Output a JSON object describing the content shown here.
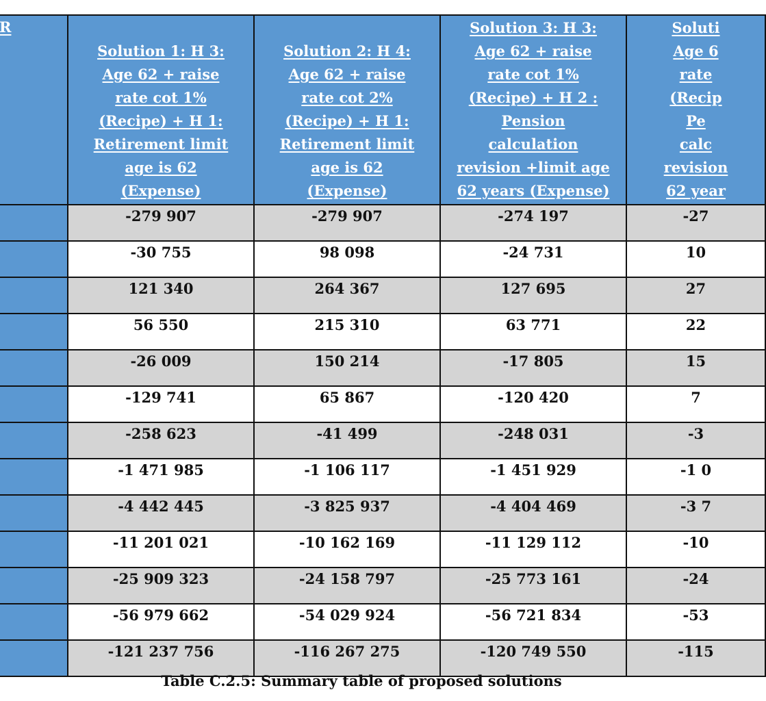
{
  "table": {
    "corner_label": "R",
    "headers": [
      "Solution 1: H 3: Age 62 + raise rate cot 1% (Recipe) + H 1: Retirement limit age is 62 (Expense)",
      "Solution 2: H 4: Age 62 + raise rate cot 2% (Recipe) + H 1: Retirement limit age is 62 (Expense)",
      "Solution 3: H 3: Age 62 + raise rate cot 1% (Recipe) + H 2 : Pension calculation revision +limit age 62 years (Expense)",
      "Soluti Age 6 rate (Recip Pe calc revision 62 year"
    ],
    "header_lines": [
      [
        "Solution 1: H 3:",
        "Age 62 + raise",
        "rate cot 1%",
        "(Recipe) + H 1:",
        "Retirement limit",
        "age is 62",
        "(Expense)"
      ],
      [
        "Solution 2: H 4:",
        "Age 62 + raise",
        "rate cot 2%",
        "(Recipe) + H 1:",
        "Retirement limit",
        "age is 62",
        "(Expense)"
      ],
      [
        "Solution 3: H 3:",
        "Age 62 + raise",
        "rate cot 1%",
        "(Recipe) + H 2 :",
        "Pension",
        "calculation",
        "revision +limit age",
        "62 years (Expense)"
      ],
      [
        "Soluti",
        "Age 6",
        "rate",
        "(Recip",
        "Pe",
        "calc",
        "revision",
        "62 year"
      ]
    ],
    "rows": [
      [
        "-279 907",
        "-279 907",
        "-274 197",
        "-27"
      ],
      [
        "-30 755",
        "98 098",
        "-24 731",
        "10"
      ],
      [
        "121 340",
        "264 367",
        "127 695",
        "27"
      ],
      [
        "56 550",
        "215 310",
        "63 771",
        "22"
      ],
      [
        "-26 009",
        "150 214",
        "-17 805",
        "15"
      ],
      [
        "-129 741",
        "65 867",
        "-120 420",
        "7"
      ],
      [
        "-258 623",
        "-41 499",
        "-248 031",
        "-3"
      ],
      [
        "-1 471 985",
        "-1 106 117",
        "-1 451 929",
        "-1 0"
      ],
      [
        "-4 442 445",
        "-3 825 937",
        "-4 404 469",
        "-3 7"
      ],
      [
        "-11 201 021",
        "-10 162 169",
        "-11 129 112",
        "-10"
      ],
      [
        "-25 909 323",
        "-24 158 797",
        "-25 773 161",
        "-24"
      ],
      [
        "-56 979 662",
        "-54 029 924",
        "-56 721 834",
        "-53"
      ],
      [
        "-121 237 756",
        "-116 267 275",
        "-120 749 550",
        "-115"
      ]
    ]
  },
  "caption": "Table C.2.5: Summary table of proposed solutions",
  "colors": {
    "header_blue": "#5b98d2",
    "row_gray": "#d4d4d4",
    "row_white": "#ffffff"
  }
}
